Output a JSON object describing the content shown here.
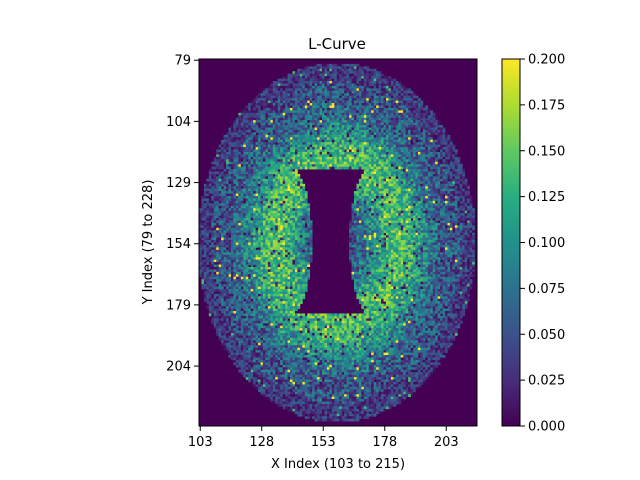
{
  "chart_data": {
    "type": "heatmap",
    "title": "L-Curve",
    "xlabel": "X Index (103 to 215)",
    "ylabel": "Y Index (79 to 228)",
    "x_range": [
      103,
      215
    ],
    "y_range": [
      79,
      228
    ],
    "x_ticks": [
      "103",
      "128",
      "153",
      "178",
      "203"
    ],
    "y_ticks": [
      "79",
      "104",
      "129",
      "154",
      "179",
      "204"
    ],
    "x_tick_values": [
      103,
      128,
      153,
      178,
      203
    ],
    "y_tick_values": [
      79,
      104,
      129,
      154,
      179,
      204
    ],
    "colorbar": {
      "min": 0.0,
      "max": 0.2,
      "colormap": "viridis",
      "ticks": [
        "0.000",
        "0.025",
        "0.050",
        "0.075",
        "0.100",
        "0.125",
        "0.150",
        "0.175",
        "0.200"
      ],
      "tick_values": [
        0.0,
        0.025,
        0.05,
        0.075,
        0.1,
        0.125,
        0.15,
        0.175,
        0.2
      ]
    },
    "background_value": 0.0,
    "description_values": {
      "outer_ring_typical": 0.08,
      "inner_band_typical": 0.15,
      "ventricles": 0.0
    }
  }
}
